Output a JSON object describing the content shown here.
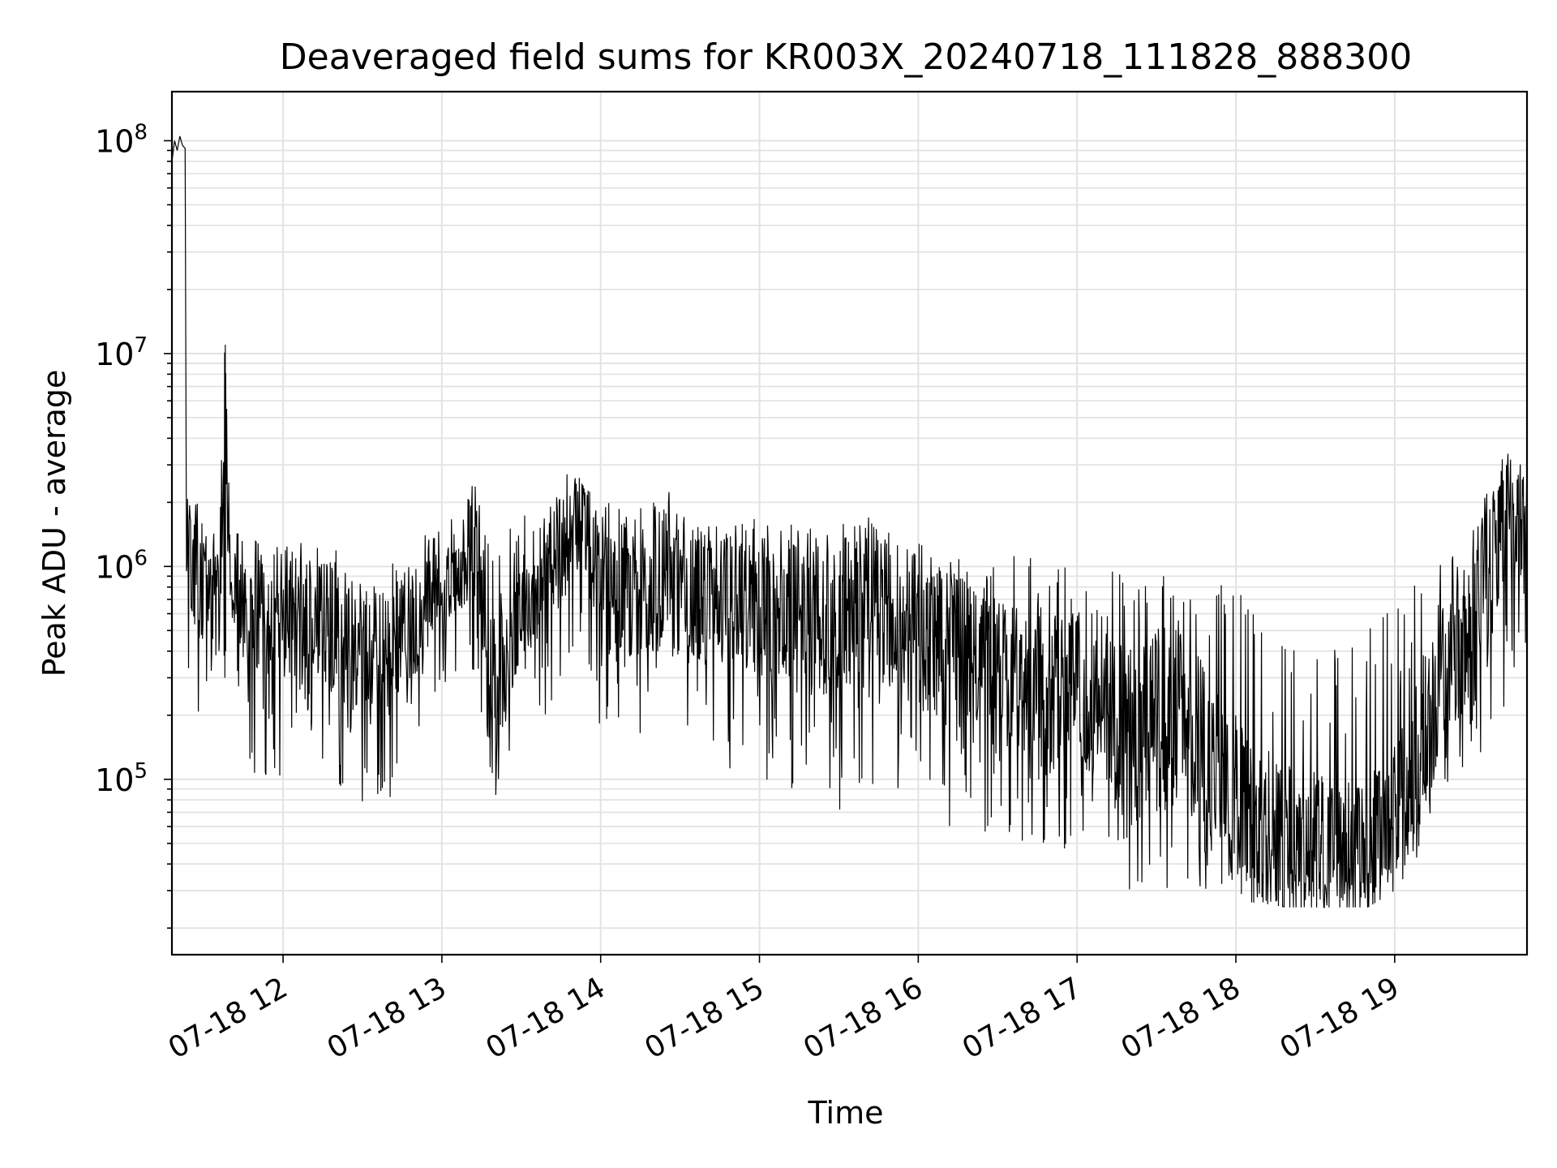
{
  "chart_data": {
    "type": "line",
    "title": "Deaveraged field sums for KR003X_20240718_111828_888300",
    "xlabel": "Time",
    "ylabel": "Peak ADU - average",
    "y_scale": "log",
    "xlim": [
      "2024-07-18 11:18",
      "2024-07-18 19:50"
    ],
    "ylim": [
      15000,
      170000000
    ],
    "grid": "major and minor, light gray",
    "legend": "none",
    "line_color": "#000000",
    "x_ticks": [
      "07-18 12",
      "07-18 13",
      "07-18 14",
      "07-18 15",
      "07-18 16",
      "07-18 17",
      "07-18 18",
      "07-18 19"
    ],
    "y_ticks": [
      {
        "base": "10",
        "exp": "5",
        "value": 100000
      },
      {
        "base": "10",
        "exp": "6",
        "value": 1000000
      },
      {
        "base": "10",
        "exp": "7",
        "value": 10000000
      },
      {
        "base": "10",
        "exp": "8",
        "value": 100000000
      }
    ],
    "series": [
      {
        "x": [
          "2024-07-18 11:18",
          "2024-07-18 11:19",
          "2024-07-18 11:20",
          "2024-07-18 11:21",
          "2024-07-18 11:22",
          "2024-07-18 11:23",
          "2024-07-18 11:23:30",
          "2024-07-18 11:24",
          "2024-07-18 11:25",
          "2024-07-18 11:26",
          "2024-07-18 11:27",
          "2024-07-18 11:28",
          "2024-07-18 11:30",
          "2024-07-18 11:33",
          "2024-07-18 11:36",
          "2024-07-18 11:38",
          "2024-07-18 11:40",
          "2024-07-18 11:42",
          "2024-07-18 11:45",
          "2024-07-18 11:48",
          "2024-07-18 11:50",
          "2024-07-18 11:55",
          "2024-07-18 11:58",
          "2024-07-18 12:00",
          "2024-07-18 12:05",
          "2024-07-18 12:10",
          "2024-07-18 12:15",
          "2024-07-18 12:20",
          "2024-07-18 12:25",
          "2024-07-18 12:30",
          "2024-07-18 12:33",
          "2024-07-18 12:36",
          "2024-07-18 12:40",
          "2024-07-18 12:45",
          "2024-07-18 12:50",
          "2024-07-18 12:55",
          "2024-07-18 13:00",
          "2024-07-18 13:05",
          "2024-07-18 13:10",
          "2024-07-18 13:14",
          "2024-07-18 13:17",
          "2024-07-18 13:20",
          "2024-07-18 13:25",
          "2024-07-18 13:30",
          "2024-07-18 13:35",
          "2024-07-18 13:40",
          "2024-07-18 13:45",
          "2024-07-18 13:50",
          "2024-07-18 13:55",
          "2024-07-18 14:00",
          "2024-07-18 14:10",
          "2024-07-18 14:20",
          "2024-07-18 14:25",
          "2024-07-18 14:30",
          "2024-07-18 14:40",
          "2024-07-18 14:50",
          "2024-07-18 15:00",
          "2024-07-18 15:10",
          "2024-07-18 15:20",
          "2024-07-18 15:30",
          "2024-07-18 15:40",
          "2024-07-18 15:50",
          "2024-07-18 16:00",
          "2024-07-18 16:10",
          "2024-07-18 16:20",
          "2024-07-18 16:30",
          "2024-07-18 16:40",
          "2024-07-18 16:50",
          "2024-07-18 17:00",
          "2024-07-18 17:10",
          "2024-07-18 17:20",
          "2024-07-18 17:30",
          "2024-07-18 17:40",
          "2024-07-18 17:50",
          "2024-07-18 18:00",
          "2024-07-18 18:10",
          "2024-07-18 18:20",
          "2024-07-18 18:30",
          "2024-07-18 18:40",
          "2024-07-18 18:50",
          "2024-07-18 19:00",
          "2024-07-18 19:10",
          "2024-07-18 19:20",
          "2024-07-18 19:30",
          "2024-07-18 19:40",
          "2024-07-18 19:50"
        ],
        "y": [
          80000000,
          100000000,
          90000000,
          105000000,
          95000000,
          92000000,
          800000,
          1500000,
          900000,
          700000,
          1200000,
          1000000,
          800000,
          600000,
          700000,
          11000000,
          600000,
          800000,
          600000,
          500000,
          700000,
          500000,
          600000,
          700000,
          600000,
          500000,
          550000,
          500000,
          450000,
          350000,
          400000,
          400000,
          450000,
          500000,
          600000,
          700000,
          800000,
          1000000,
          1200000,
          1300000,
          300000,
          250000,
          400000,
          600000,
          900000,
          1000000,
          1200000,
          1500000,
          1300000,
          900000,
          700000,
          800000,
          900000,
          700000,
          750000,
          700000,
          650000,
          600000,
          550000,
          600000,
          700000,
          600000,
          550000,
          450000,
          350000,
          300000,
          300000,
          250000,
          250000,
          250000,
          150000,
          200000,
          200000,
          120000,
          80000,
          60000,
          50000,
          50000,
          45000,
          45000,
          60000,
          150000,
          300000,
          600000,
          1500000,
          1800000
        ],
        "band_low": [
          80000000,
          100000000,
          90000000,
          105000000,
          95000000,
          92000000,
          150000,
          250000,
          200000,
          150000,
          250000,
          200000,
          150000,
          150000,
          200000,
          150000,
          150000,
          150000,
          120000,
          110000,
          100000,
          90000,
          80000,
          100000,
          110000,
          100000,
          100000,
          90000,
          80000,
          70000,
          60000,
          70000,
          80000,
          100000,
          150000,
          200000,
          250000,
          300000,
          300000,
          250000,
          70000,
          70000,
          100000,
          150000,
          200000,
          200000,
          300000,
          400000,
          300000,
          150000,
          150000,
          150000,
          150000,
          120000,
          120000,
          110000,
          100000,
          90000,
          80000,
          70000,
          80000,
          70000,
          60000,
          60000,
          55000,
          55000,
          50000,
          45000,
          40000,
          35000,
          30000,
          30000,
          28000,
          28000,
          27000,
          26000,
          25000,
          25000,
          25000,
          25000,
          30000,
          40000,
          60000,
          100000,
          200000,
          250000
        ],
        "band_high": [
          80000000,
          100000000,
          90000000,
          105000000,
          95000000,
          92000000,
          2500000,
          2500000,
          2000000,
          1800000,
          2000000,
          2000000,
          1800000,
          1500000,
          1500000,
          11000000,
          1500000,
          1800000,
          1500000,
          1400000,
          1500000,
          1200000,
          1300000,
          1500000,
          1400000,
          1200000,
          1300000,
          1200000,
          1100000,
          1000000,
          1000000,
          1000000,
          1100000,
          1200000,
          1400000,
          1500000,
          1800000,
          2000000,
          2500000,
          2500000,
          1500000,
          1200000,
          1500000,
          1800000,
          2500000,
          3000000,
          3000000,
          3200000,
          3000000,
          2500000,
          1800000,
          2000000,
          2500000,
          1700000,
          1800000,
          1600000,
          1700000,
          1600000,
          1500000,
          1600000,
          1800000,
          1500000,
          1400000,
          1300000,
          1200000,
          1200000,
          1100000,
          1100000,
          1100000,
          1000000,
          900000,
          900000,
          1000000,
          900000,
          900000,
          800000,
          700000,
          600000,
          500000,
          500000,
          700000,
          1000000,
          1200000,
          1500000,
          3500000,
          3200000
        ]
      }
    ]
  }
}
